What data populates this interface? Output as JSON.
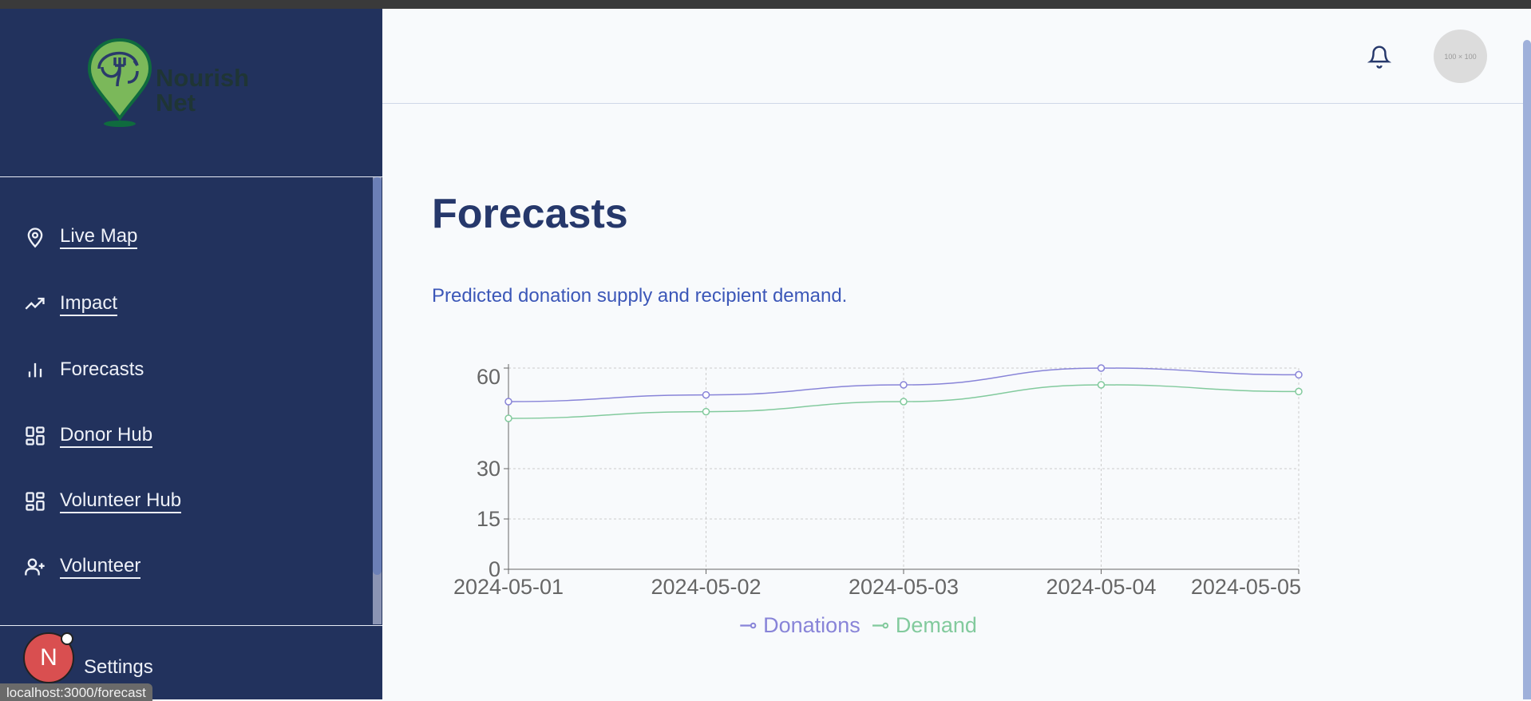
{
  "logo": {
    "text_line1": "Nourish",
    "text_line2": "Net"
  },
  "sidebar": {
    "items": [
      {
        "label": "Live Map",
        "icon": "map-pin-icon",
        "underline": true
      },
      {
        "label": "Impact",
        "icon": "trending-up-icon",
        "underline": true
      },
      {
        "label": "Forecasts",
        "icon": "bar-chart-icon",
        "underline": false
      },
      {
        "label": "Donor Hub",
        "icon": "dashboard-icon",
        "underline": true
      },
      {
        "label": "Volunteer Hub",
        "icon": "dashboard-icon",
        "underline": true
      },
      {
        "label": "Volunteer",
        "icon": "user-plus-icon",
        "underline": true
      }
    ],
    "settings_label": "Settings",
    "badge_letter": "N"
  },
  "tooltip": "localhost:3000/forecast",
  "header": {
    "avatar_placeholder": "100 × 100"
  },
  "page": {
    "title": "Forecasts",
    "subtitle": "Predicted donation supply and recipient demand."
  },
  "chart_data": {
    "type": "line",
    "x": [
      "2024-05-01",
      "2024-05-02",
      "2024-05-03",
      "2024-05-04",
      "2024-05-05"
    ],
    "series": [
      {
        "name": "Donations",
        "values": [
          50,
          52,
          55,
          60,
          58
        ],
        "color": "#8884d8"
      },
      {
        "name": "Demand",
        "values": [
          45,
          47,
          50,
          55,
          53
        ],
        "color": "#82ca9d"
      }
    ],
    "yticks": [
      0,
      15,
      30,
      60
    ],
    "ylim": [
      0,
      60
    ],
    "grid": true,
    "legend": "bottom-center"
  }
}
